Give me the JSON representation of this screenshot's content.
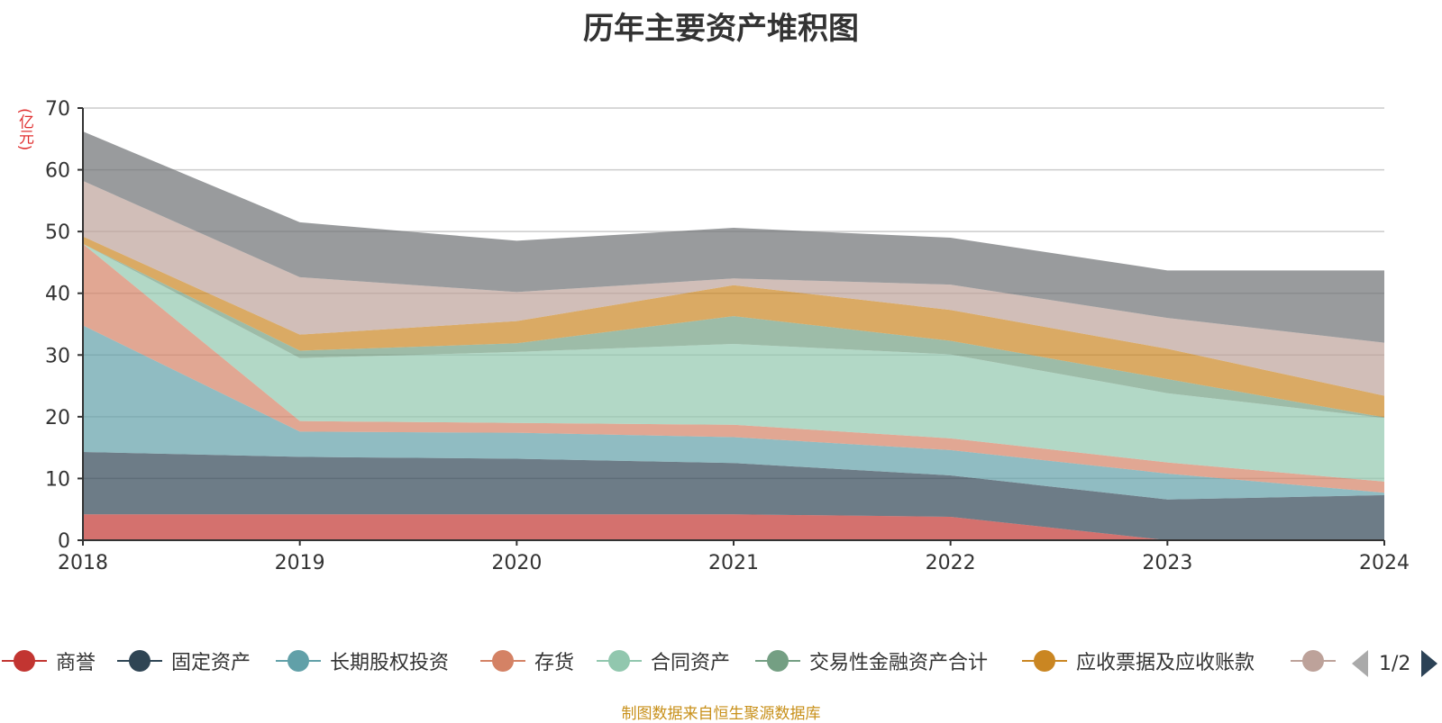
{
  "chart_data": {
    "type": "area",
    "stacked": true,
    "title": "历年主要资产堆积图",
    "y_unit": "(亿元)",
    "x": [
      "2018",
      "2019",
      "2020",
      "2021",
      "2022",
      "2023",
      "2024"
    ],
    "ylim": [
      0,
      70
    ],
    "yticks": [
      "0",
      "10",
      "20",
      "30",
      "40",
      "50",
      "60",
      "70"
    ],
    "grid": true,
    "legend_position": "bottom",
    "series": [
      {
        "name": "商誉",
        "color": "#c23531",
        "values": [
          4.2,
          4.2,
          4.2,
          4.2,
          3.8,
          0,
          0
        ]
      },
      {
        "name": "固定资产",
        "color": "#2f4554",
        "values": [
          10.1,
          9.3,
          9.0,
          8.3,
          6.7,
          6.6,
          7.3
        ]
      },
      {
        "name": "长期股权投资",
        "color": "#61a0a8",
        "values": [
          20.5,
          4.1,
          4.2,
          4.2,
          4.1,
          4.2,
          0.4
        ]
      },
      {
        "name": "存货",
        "color": "#d48265",
        "values": [
          13.2,
          1.7,
          1.6,
          2.0,
          1.9,
          1.8,
          1.8
        ]
      },
      {
        "name": "合同资产",
        "color": "#91c7ae",
        "values": [
          0,
          10.2,
          11.5,
          13.1,
          13.6,
          11.2,
          10.3
        ]
      },
      {
        "name": "交易性金融资产合计",
        "color": "#749f83",
        "values": [
          0,
          1.2,
          1.4,
          4.5,
          2.2,
          2.3,
          0.1
        ]
      },
      {
        "name": "应收票据及应收账款",
        "color": "#ca8622",
        "values": [
          1.2,
          2.6,
          3.6,
          5.0,
          5.0,
          4.9,
          3.5
        ]
      },
      {
        "name": "",
        "color": "#bda29a",
        "values": [
          9.0,
          9.3,
          4.7,
          1.1,
          4.1,
          5.0,
          8.6
        ]
      },
      {
        "name": "",
        "color": "#6e7074",
        "values": [
          8.0,
          8.9,
          8.3,
          8.2,
          7.6,
          7.7,
          11.7
        ]
      }
    ]
  },
  "legend": {
    "visible_count": 8,
    "page": "1/2"
  },
  "source": "制图数据来自恒生聚源数据库"
}
